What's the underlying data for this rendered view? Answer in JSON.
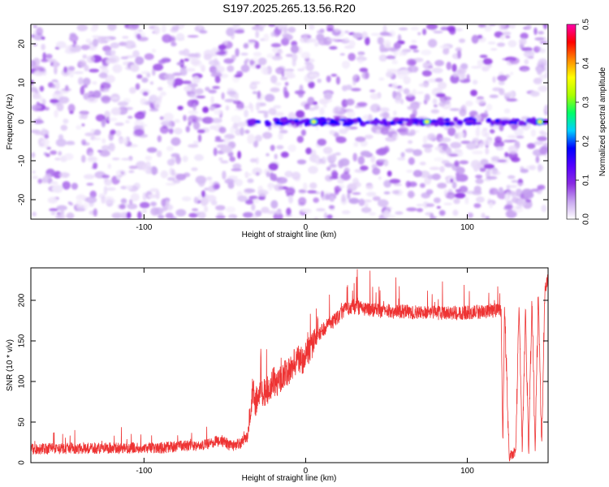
{
  "title": "S197.2025.265.13.56.R20",
  "chart_data": [
    {
      "type": "heatmap",
      "name": "spectrogram",
      "title": "S197.2025.265.13.56.R20",
      "xlabel": "Height of straight line (km)",
      "ylabel": "Frequency (Hz)",
      "xlim": [
        -170,
        150
      ],
      "ylim": [
        -25,
        25
      ],
      "x_ticks": [
        -100,
        0,
        100
      ],
      "y_ticks": [
        -20,
        -10,
        0,
        10,
        20
      ],
      "grid": false,
      "signal_band_hz": 0,
      "signal_x_range_km": [
        -35,
        150
      ],
      "peak_x_km": [
        5,
        75,
        145
      ],
      "colorbar": {
        "label": "Normalized spectral amplitude",
        "range": [
          0,
          0.5
        ],
        "ticks": [
          0,
          0.1,
          0.2,
          0.3,
          0.4,
          0.5
        ],
        "colors": [
          "#ffffff",
          "#c8a6f0",
          "#8a2be2",
          "#5500ff",
          "#0000ff",
          "#00d0ff",
          "#00ff66",
          "#aaff00",
          "#ffff00",
          "#ff8800",
          "#ff0000",
          "#ff00aa"
        ]
      }
    },
    {
      "type": "line",
      "name": "snr-trace",
      "xlabel": "Height of straight line (km)",
      "ylabel": "SNR (10 * v/v)",
      "xlim": [
        -170,
        150
      ],
      "ylim": [
        0,
        240
      ],
      "x_ticks": [
        -100,
        0,
        100
      ],
      "y_ticks": [
        0,
        50,
        100,
        150,
        200
      ],
      "grid": false,
      "series": [
        {
          "name": "SNR",
          "color": "#ee3333",
          "x": [
            -170,
            -120,
            -90,
            -80,
            -70,
            -60,
            -55,
            -50,
            -45,
            -40,
            -38,
            -36,
            -34,
            -33,
            -31,
            -28,
            -25,
            -22,
            -20,
            -17,
            -14,
            -11,
            -8,
            -5,
            -2,
            0,
            3,
            6,
            9,
            12,
            15,
            18,
            21,
            25,
            30,
            40,
            55,
            70,
            85,
            100,
            110,
            118,
            121,
            122,
            123,
            126,
            130,
            132,
            134,
            136,
            138,
            140,
            142,
            144,
            146,
            148,
            150
          ],
          "y": [
            17,
            18,
            18,
            20,
            21,
            23,
            26,
            25,
            20,
            25,
            27,
            32,
            60,
            90,
            75,
            90,
            85,
            95,
            100,
            100,
            110,
            110,
            120,
            130,
            125,
            133,
            142,
            150,
            160,
            166,
            172,
            175,
            180,
            190,
            192,
            188,
            186,
            185,
            184,
            185,
            186,
            188,
            185,
            20,
            190,
            8,
            15,
            195,
            14,
            190,
            12,
            200,
            16,
            205,
            20,
            210,
            228
          ]
        }
      ]
    }
  ]
}
